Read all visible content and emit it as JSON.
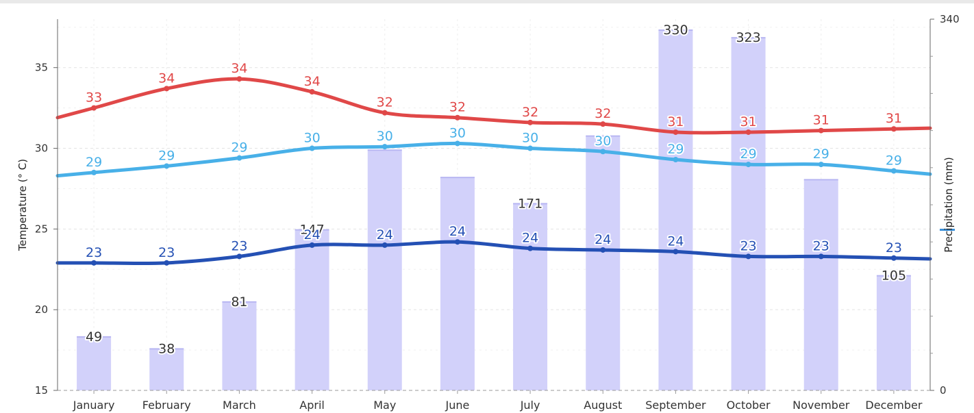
{
  "chart_data": {
    "type": "bar+line",
    "categories": [
      "January",
      "February",
      "March",
      "April",
      "May",
      "June",
      "July",
      "August",
      "September",
      "October",
      "November",
      "December"
    ],
    "bars": {
      "name": "Precipitation",
      "values": [
        49,
        38,
        81,
        147,
        220,
        195,
        171,
        233,
        330,
        323,
        193,
        105
      ],
      "labels_shown": [
        true,
        true,
        true,
        true,
        false,
        false,
        true,
        false,
        true,
        true,
        false,
        true
      ],
      "color": "#d2d1fa"
    },
    "series": [
      {
        "values": [
          33,
          34,
          34,
          34,
          32,
          32,
          32,
          32,
          31,
          31,
          31,
          31
        ],
        "plot_values": [
          32.5,
          33.7,
          34.3,
          33.5,
          32.2,
          31.9,
          31.6,
          31.5,
          31.0,
          31.0,
          31.1,
          31.2
        ],
        "color": "#e04848"
      },
      {
        "values": [
          29,
          29,
          29,
          30,
          30,
          30,
          30,
          30,
          29,
          29,
          29,
          29
        ],
        "plot_values": [
          28.5,
          28.9,
          29.4,
          30.0,
          30.1,
          30.3,
          30.0,
          29.8,
          29.3,
          29.0,
          29.0,
          28.6
        ],
        "color": "#48b0e8"
      },
      {
        "values": [
          23,
          23,
          23,
          24,
          24,
          24,
          24,
          24,
          24,
          23,
          23,
          23
        ],
        "plot_values": [
          22.9,
          22.9,
          23.3,
          24.0,
          24.0,
          24.2,
          23.8,
          23.7,
          23.6,
          23.3,
          23.3,
          23.2
        ],
        "color": "#2450b4"
      }
    ],
    "y_left": {
      "label": "Temperature (° C)",
      "range": [
        15,
        38
      ],
      "ticks": [
        "15",
        "20",
        "25",
        "30",
        "35"
      ]
    },
    "y_right": {
      "label": "Precipitation (mm)",
      "range": [
        0,
        340
      ],
      "ticks": [
        "0",
        "340"
      ]
    },
    "grid": true
  }
}
